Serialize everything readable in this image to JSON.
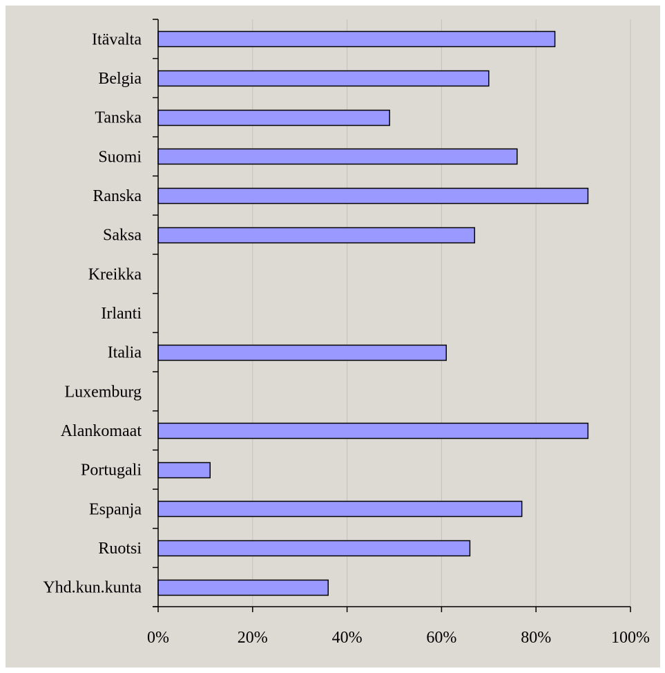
{
  "chart_data": {
    "type": "bar",
    "orientation": "horizontal",
    "categories": [
      "Itävalta",
      "Belgia",
      "Tanska",
      "Suomi",
      "Ranska",
      "Saksa",
      "Kreikka",
      "Irlanti",
      "Italia",
      "Luxemburg",
      "Alankomaat",
      "Portugali",
      "Espanja",
      "Ruotsi",
      "Yhd.kun.kunta"
    ],
    "values": [
      84,
      70,
      49,
      76,
      91,
      67,
      null,
      null,
      61,
      null,
      91,
      11,
      77,
      66,
      36
    ],
    "xlim": [
      0,
      100
    ],
    "x_ticks": [
      0,
      20,
      40,
      60,
      80,
      100
    ],
    "x_tick_labels": [
      "0%",
      "20%",
      "40%",
      "60%",
      "80%",
      "100%"
    ],
    "grid": "vertical",
    "legend": "none",
    "colors": {
      "bar_fill": "#9999ff",
      "bar_stroke": "#000000",
      "plot_background": "#ddd9d3",
      "gridline": "#c4c0ba",
      "axis": "#000000"
    }
  }
}
